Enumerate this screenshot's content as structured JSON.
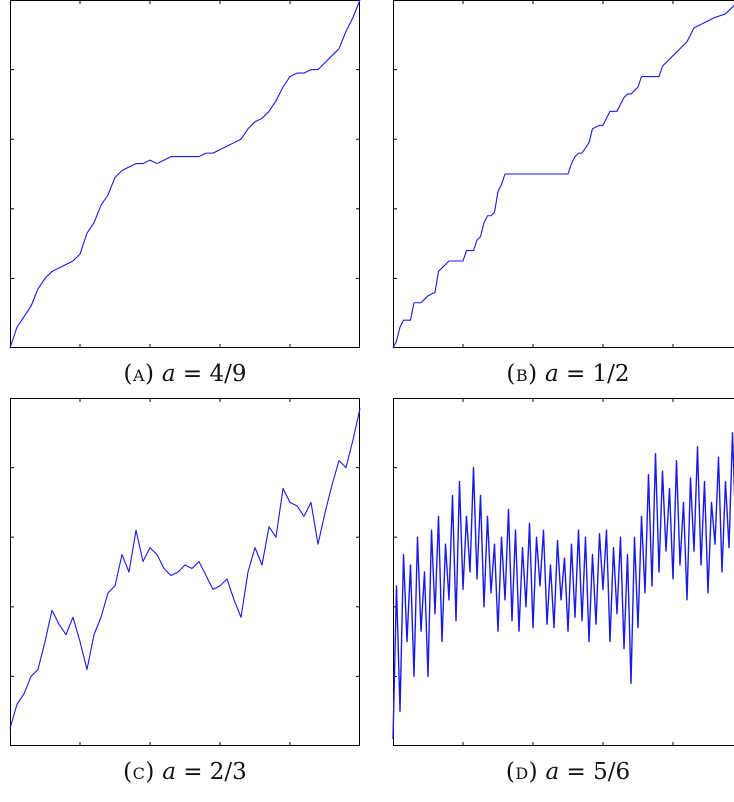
{
  "figure": {
    "line_color": "#1a1ae6",
    "axis_color": "#000000"
  },
  "chart_data": [
    {
      "type": "line",
      "panel_id": "a",
      "caption": {
        "tag": "(a)",
        "var": "a",
        "rest": " = 4/9"
      },
      "tick_count": 5,
      "xlim": [
        0,
        1
      ],
      "ylim": [
        0,
        1
      ],
      "x": [
        0,
        0.02,
        0.04,
        0.06,
        0.08,
        0.1,
        0.12,
        0.14,
        0.16,
        0.18,
        0.2,
        0.22,
        0.24,
        0.26,
        0.28,
        0.3,
        0.32,
        0.34,
        0.36,
        0.38,
        0.4,
        0.42,
        0.44,
        0.46,
        0.48,
        0.5,
        0.52,
        0.54,
        0.56,
        0.58,
        0.6,
        0.62,
        0.64,
        0.66,
        0.68,
        0.7,
        0.72,
        0.74,
        0.76,
        0.78,
        0.8,
        0.82,
        0.84,
        0.86,
        0.88,
        0.9,
        0.92,
        0.94,
        0.96,
        0.98,
        1
      ],
      "values": [
        0,
        0.06,
        0.09,
        0.12,
        0.17,
        0.2,
        0.22,
        0.23,
        0.24,
        0.25,
        0.27,
        0.33,
        0.36,
        0.41,
        0.44,
        0.49,
        0.51,
        0.52,
        0.53,
        0.53,
        0.54,
        0.53,
        0.54,
        0.55,
        0.55,
        0.55,
        0.55,
        0.55,
        0.56,
        0.56,
        0.57,
        0.58,
        0.59,
        0.6,
        0.63,
        0.65,
        0.66,
        0.68,
        0.71,
        0.75,
        0.78,
        0.79,
        0.79,
        0.8,
        0.8,
        0.82,
        0.84,
        0.86,
        0.91,
        0.95,
        1.0
      ]
    },
    {
      "type": "line",
      "panel_id": "b",
      "caption": {
        "tag": "(b)",
        "var": "a",
        "rest": " = 1/2"
      },
      "tick_count": 5,
      "xlim": [
        0,
        1
      ],
      "ylim": [
        0,
        1
      ],
      "x": [
        0,
        0.01,
        0.02,
        0.03,
        0.05,
        0.06,
        0.08,
        0.1,
        0.12,
        0.13,
        0.15,
        0.16,
        0.2,
        0.21,
        0.23,
        0.24,
        0.25,
        0.26,
        0.27,
        0.28,
        0.29,
        0.3,
        0.31,
        0.32,
        0.5,
        0.51,
        0.52,
        0.53,
        0.54,
        0.56,
        0.57,
        0.59,
        0.6,
        0.62,
        0.64,
        0.65,
        0.66,
        0.67,
        0.68,
        0.7,
        0.71,
        0.73,
        0.75,
        0.76,
        0.77,
        0.78,
        0.8,
        0.81,
        0.82,
        0.84,
        0.85,
        0.86,
        0.88,
        0.9,
        0.92,
        0.95,
        0.96,
        0.97,
        0.98,
        0.99,
        1
      ],
      "values": [
        0,
        0.02,
        0.06,
        0.08,
        0.08,
        0.13,
        0.13,
        0.15,
        0.16,
        0.22,
        0.24,
        0.25,
        0.25,
        0.28,
        0.28,
        0.31,
        0.32,
        0.36,
        0.38,
        0.38,
        0.39,
        0.45,
        0.47,
        0.5,
        0.5,
        0.53,
        0.55,
        0.56,
        0.56,
        0.59,
        0.63,
        0.64,
        0.64,
        0.68,
        0.68,
        0.7,
        0.72,
        0.73,
        0.73,
        0.75,
        0.78,
        0.78,
        0.78,
        0.78,
        0.81,
        0.82,
        0.84,
        0.85,
        0.86,
        0.88,
        0.9,
        0.92,
        0.93,
        0.94,
        0.95,
        0.96,
        0.97,
        0.98,
        0.99,
        1.0,
        1.0
      ]
    },
    {
      "type": "line",
      "panel_id": "c",
      "caption": {
        "tag": "(c)",
        "var": "a",
        "rest": " = 2/3"
      },
      "tick_count": 5,
      "xlim": [
        0,
        1
      ],
      "ylim": [
        0,
        1
      ],
      "x": [
        0,
        0.02,
        0.04,
        0.06,
        0.08,
        0.1,
        0.12,
        0.14,
        0.16,
        0.18,
        0.2,
        0.22,
        0.24,
        0.26,
        0.28,
        0.3,
        0.32,
        0.34,
        0.36,
        0.38,
        0.4,
        0.42,
        0.44,
        0.46,
        0.48,
        0.5,
        0.52,
        0.54,
        0.56,
        0.58,
        0.6,
        0.62,
        0.64,
        0.66,
        0.68,
        0.7,
        0.72,
        0.74,
        0.76,
        0.78,
        0.8,
        0.82,
        0.84,
        0.86,
        0.88,
        0.9,
        0.92,
        0.94,
        0.96,
        0.98,
        1
      ],
      "values": [
        0.05,
        0.12,
        0.15,
        0.2,
        0.22,
        0.3,
        0.39,
        0.35,
        0.32,
        0.37,
        0.3,
        0.22,
        0.32,
        0.37,
        0.44,
        0.46,
        0.55,
        0.5,
        0.62,
        0.53,
        0.57,
        0.55,
        0.51,
        0.49,
        0.5,
        0.52,
        0.51,
        0.53,
        0.49,
        0.45,
        0.46,
        0.48,
        0.42,
        0.37,
        0.5,
        0.57,
        0.52,
        0.63,
        0.6,
        0.74,
        0.7,
        0.69,
        0.66,
        0.7,
        0.58,
        0.67,
        0.75,
        0.82,
        0.8,
        0.88,
        0.97
      ]
    },
    {
      "type": "line",
      "panel_id": "d",
      "caption": {
        "tag": "(d)",
        "var": "a",
        "rest": " = 5/6"
      },
      "tick_count": 5,
      "xlim": [
        0,
        1
      ],
      "ylim": [
        0,
        1
      ],
      "x": [
        0,
        0.01,
        0.02,
        0.03,
        0.04,
        0.05,
        0.06,
        0.07,
        0.08,
        0.09,
        0.1,
        0.11,
        0.12,
        0.13,
        0.14,
        0.15,
        0.16,
        0.17,
        0.18,
        0.19,
        0.2,
        0.21,
        0.22,
        0.23,
        0.24,
        0.25,
        0.26,
        0.27,
        0.28,
        0.29,
        0.3,
        0.31,
        0.32,
        0.33,
        0.34,
        0.35,
        0.36,
        0.37,
        0.38,
        0.39,
        0.4,
        0.41,
        0.42,
        0.43,
        0.44,
        0.45,
        0.46,
        0.47,
        0.48,
        0.49,
        0.5,
        0.51,
        0.52,
        0.53,
        0.54,
        0.55,
        0.56,
        0.57,
        0.58,
        0.59,
        0.6,
        0.61,
        0.62,
        0.63,
        0.64,
        0.65,
        0.66,
        0.67,
        0.68,
        0.69,
        0.7,
        0.71,
        0.72,
        0.73,
        0.74,
        0.75,
        0.76,
        0.77,
        0.78,
        0.79,
        0.8,
        0.81,
        0.82,
        0.83,
        0.84,
        0.85,
        0.86,
        0.87,
        0.88,
        0.89,
        0.9,
        0.91,
        0.92,
        0.93,
        0.94,
        0.95,
        0.96,
        0.97,
        0.98,
        0.99,
        1
      ],
      "values": [
        0.02,
        0.46,
        0.1,
        0.55,
        0.3,
        0.52,
        0.2,
        0.6,
        0.33,
        0.5,
        0.2,
        0.62,
        0.38,
        0.66,
        0.3,
        0.58,
        0.42,
        0.72,
        0.36,
        0.76,
        0.45,
        0.66,
        0.5,
        0.8,
        0.48,
        0.72,
        0.4,
        0.66,
        0.44,
        0.58,
        0.33,
        0.6,
        0.42,
        0.68,
        0.36,
        0.62,
        0.33,
        0.57,
        0.4,
        0.64,
        0.34,
        0.6,
        0.46,
        0.62,
        0.35,
        0.52,
        0.34,
        0.59,
        0.42,
        0.54,
        0.33,
        0.58,
        0.37,
        0.62,
        0.36,
        0.6,
        0.3,
        0.55,
        0.35,
        0.61,
        0.45,
        0.62,
        0.3,
        0.57,
        0.38,
        0.6,
        0.28,
        0.55,
        0.18,
        0.6,
        0.34,
        0.66,
        0.44,
        0.78,
        0.46,
        0.84,
        0.5,
        0.79,
        0.56,
        0.74,
        0.48,
        0.82,
        0.52,
        0.7,
        0.42,
        0.77,
        0.56,
        0.86,
        0.52,
        0.76,
        0.44,
        0.7,
        0.58,
        0.83,
        0.5,
        0.76,
        0.57,
        0.9,
        0.6,
        0.8,
        0.72
      ]
    }
  ]
}
